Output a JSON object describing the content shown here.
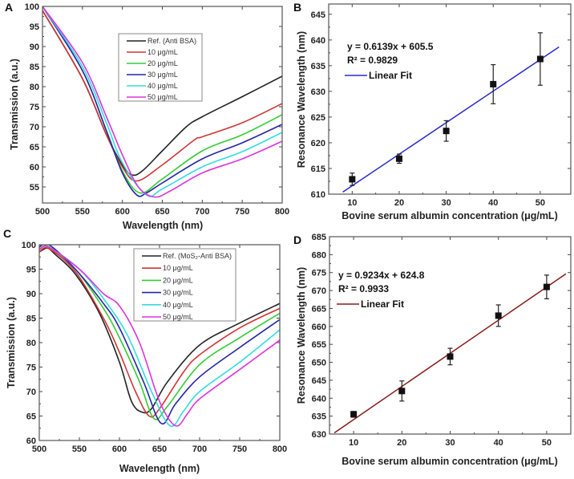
{
  "chart_data": [
    {
      "panel": "A",
      "type": "line",
      "xlabel": "Wavelength (nm)",
      "ylabel": "Transmission (a.u.)",
      "xlim": [
        500,
        800
      ],
      "ylim": [
        51,
        100
      ],
      "xticks": [
        500,
        550,
        600,
        650,
        700,
        750,
        800
      ],
      "yticks": [
        55,
        60,
        65,
        70,
        75,
        80,
        85,
        90,
        95,
        100
      ],
      "legend_position": "top-center",
      "series": [
        {
          "name": "Ref. (Anti BSA)",
          "color": "#222222",
          "points": [
            [
              500,
              99
            ],
            [
              550,
              82
            ],
            [
              580,
              68
            ],
            [
              600,
              60.5
            ],
            [
              612,
              58
            ],
            [
              625,
              59
            ],
            [
              650,
              64
            ],
            [
              680,
              70
            ],
            [
              700,
              72.5
            ],
            [
              750,
              77.5
            ],
            [
              800,
              82.6
            ]
          ]
        },
        {
          "name": "10 μg/mL",
          "color": "#d03535",
          "points": [
            [
              500,
              99
            ],
            [
              550,
              82
            ],
            [
              580,
              68
            ],
            [
              600,
              60
            ],
            [
              618,
              56.5
            ],
            [
              650,
              60.5
            ],
            [
              690,
              66.7
            ],
            [
              700,
              67.5
            ],
            [
              750,
              71
            ],
            [
              800,
              75.8
            ]
          ]
        },
        {
          "name": "20 μg/mL",
          "color": "#33cc33",
          "points": [
            [
              500,
              100
            ],
            [
              550,
              84
            ],
            [
              580,
              69
            ],
            [
              600,
              59
            ],
            [
              622,
              53.5
            ],
            [
              650,
              57
            ],
            [
              700,
              64
            ],
            [
              750,
              68
            ],
            [
              800,
              73
            ]
          ]
        },
        {
          "name": "30 μg/mL",
          "color": "#2424a8",
          "points": [
            [
              500,
              100
            ],
            [
              550,
              84
            ],
            [
              580,
              69
            ],
            [
              600,
              58.5
            ],
            [
              618,
              53
            ],
            [
              630,
              53.5
            ],
            [
              650,
              56
            ],
            [
              700,
              62
            ],
            [
              750,
              66
            ],
            [
              800,
              70.6
            ]
          ]
        },
        {
          "name": "40 μg/mL",
          "color": "#33dddd",
          "points": [
            [
              500,
              100
            ],
            [
              550,
              85
            ],
            [
              580,
              71
            ],
            [
              600,
              61
            ],
            [
              630,
              53
            ],
            [
              650,
              54.5
            ],
            [
              700,
              60
            ],
            [
              750,
              63.8
            ],
            [
              800,
              68.6
            ]
          ]
        },
        {
          "name": "50 μg/mL",
          "color": "#dd33dd",
          "points": [
            [
              500,
              100
            ],
            [
              550,
              86
            ],
            [
              580,
              72.5
            ],
            [
              600,
              63
            ],
            [
              620,
              55
            ],
            [
              640,
              52.5
            ],
            [
              660,
              54
            ],
            [
              700,
              58.5
            ],
            [
              750,
              62
            ],
            [
              800,
              66.4
            ]
          ]
        }
      ]
    },
    {
      "panel": "B",
      "type": "scatter",
      "xlabel": "Bovine serum albumin concentration (μg/mL)",
      "ylabel": "Resonance Wavelength (nm)",
      "xlim": [
        5,
        56.5
      ],
      "ylim": [
        610,
        647
      ],
      "xticks": [
        10,
        20,
        30,
        40,
        50
      ],
      "yticks": [
        610,
        615,
        620,
        625,
        630,
        635,
        640,
        645
      ],
      "x": [
        10,
        20,
        30,
        40,
        50
      ],
      "y": [
        612.9,
        616.9,
        622.3,
        631.4,
        636.3
      ],
      "err": [
        1.2,
        0.9,
        2.0,
        3.8,
        5.1
      ],
      "fit": {
        "slope": 0.6139,
        "intercept": 605.5,
        "range": [
          8,
          54
        ],
        "color": "#2a2ad0",
        "equation": "y = 0.6139x + 605.5",
        "r2": "R² = 0.9829",
        "legend": "Linear Fit"
      }
    },
    {
      "panel": "C",
      "type": "line",
      "xlabel": "Wavelength (nm)",
      "ylabel": "Transmission (a.u.)",
      "xlim": [
        500,
        800
      ],
      "ylim": [
        60,
        100
      ],
      "xticks": [
        500,
        550,
        600,
        650,
        700,
        750,
        800
      ],
      "yticks": [
        60,
        65,
        70,
        75,
        80,
        85,
        90,
        95,
        100
      ],
      "legend_position": "top-right",
      "series": [
        {
          "name": "Ref. (MoS₂-Anti BSA)",
          "color": "#222222",
          "points": [
            [
              500,
              98.5
            ],
            [
              510,
              99.3
            ],
            [
              520,
              98
            ],
            [
              545,
              94
            ],
            [
              575,
              86
            ],
            [
              600,
              76
            ],
            [
              615,
              68
            ],
            [
              628,
              65.8
            ],
            [
              640,
              66.5
            ],
            [
              660,
              72
            ],
            [
              700,
              79.5
            ],
            [
              750,
              84
            ],
            [
              800,
              88
            ]
          ]
        },
        {
          "name": "10 μg/mL",
          "color": "#d03535",
          "points": [
            [
              500,
              98.5
            ],
            [
              512,
              99.2
            ],
            [
              545,
              94.5
            ],
            [
              580,
              85
            ],
            [
              600,
              78
            ],
            [
              620,
              70
            ],
            [
              637,
              65
            ],
            [
              650,
              66.5
            ],
            [
              680,
              74
            ],
            [
              700,
              77.5
            ],
            [
              750,
              83
            ],
            [
              800,
              87
            ]
          ]
        },
        {
          "name": "20 μg/mL",
          "color": "#33cc33",
          "points": [
            [
              500,
              99
            ],
            [
              512,
              99.6
            ],
            [
              545,
              95
            ],
            [
              580,
              87
            ],
            [
              600,
              81
            ],
            [
              625,
              72
            ],
            [
              643,
              64.5
            ],
            [
              660,
              67
            ],
            [
              700,
              75.5
            ],
            [
              750,
              81
            ],
            [
              800,
              86
            ]
          ]
        },
        {
          "name": "30 μg/mL",
          "color": "#2424a8",
          "points": [
            [
              500,
              99.5
            ],
            [
              512,
              100
            ],
            [
              545,
              95
            ],
            [
              580,
              88
            ],
            [
              600,
              83
            ],
            [
              630,
              72
            ],
            [
              652,
              63.5
            ],
            [
              670,
              67.5
            ],
            [
              700,
              73
            ],
            [
              750,
              79
            ],
            [
              800,
              84.7
            ]
          ]
        },
        {
          "name": "40 μg/mL",
          "color": "#33dddd",
          "points": [
            [
              500,
              99
            ],
            [
              512,
              99.5
            ],
            [
              550,
              95
            ],
            [
              580,
              89
            ],
            [
              610,
              81.5
            ],
            [
              640,
              70
            ],
            [
              663,
              63
            ],
            [
              680,
              66
            ],
            [
              700,
              70
            ],
            [
              750,
              76
            ],
            [
              800,
              82.6
            ]
          ]
        },
        {
          "name": "50 μg/mL",
          "color": "#dd33dd",
          "points": [
            [
              500,
              99
            ],
            [
              512,
              99.5
            ],
            [
              550,
              95
            ],
            [
              580,
              90
            ],
            [
              600,
              87.5
            ],
            [
              625,
              80
            ],
            [
              650,
              68
            ],
            [
              670,
              63
            ],
            [
              685,
              65.5
            ],
            [
              700,
              68.5
            ],
            [
              750,
              74.5
            ],
            [
              800,
              80.5
            ]
          ]
        }
      ]
    },
    {
      "panel": "D",
      "type": "scatter",
      "xlabel": "Bovine serum albumin concentration (μg/mL)",
      "ylabel": "Resonance Wavelength (nm)",
      "xlim": [
        5,
        55
      ],
      "ylim": [
        630,
        685
      ],
      "xticks": [
        10,
        20,
        30,
        40,
        50
      ],
      "yticks": [
        630,
        635,
        640,
        645,
        650,
        655,
        660,
        665,
        670,
        675,
        680,
        685
      ],
      "x": [
        10,
        20,
        30,
        40,
        50
      ],
      "y": [
        635.5,
        642.0,
        651.6,
        663.0,
        671.0
      ],
      "err": [
        0.8,
        2.8,
        2.3,
        3.0,
        3.3
      ],
      "fit": {
        "slope": 0.9234,
        "intercept": 624.8,
        "range": [
          6,
          54
        ],
        "color": "#8b1a1a",
        "equation": "y = 0.9234x + 624.8",
        "r2": "R² = 0.9933",
        "legend": "Linear Fit"
      }
    }
  ]
}
